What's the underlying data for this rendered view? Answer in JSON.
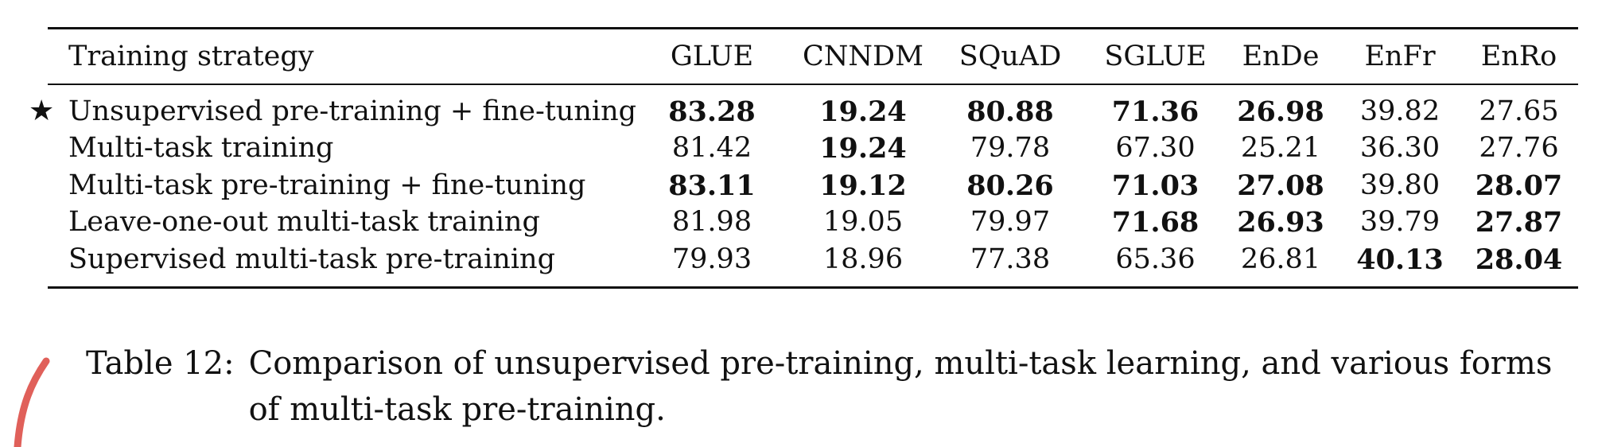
{
  "table": {
    "headers": [
      "Training strategy",
      "GLUE",
      "CNNDM",
      "SQuAD",
      "SGLUE",
      "EnDe",
      "EnFr",
      "EnRo"
    ],
    "rows": [
      {
        "label": "Unsupervised pre-training + fine-tuning",
        "baseline_marker": "★",
        "values": [
          "83.28",
          "19.24",
          "80.88",
          "71.36",
          "26.98",
          "39.82",
          "27.65"
        ],
        "bold": [
          true,
          true,
          true,
          true,
          true,
          false,
          false
        ]
      },
      {
        "label": "Multi-task training",
        "baseline_marker": "",
        "values": [
          "81.42",
          "19.24",
          "79.78",
          "67.30",
          "25.21",
          "36.30",
          "27.76"
        ],
        "bold": [
          false,
          true,
          false,
          false,
          false,
          false,
          false
        ]
      },
      {
        "label": "Multi-task pre-training + fine-tuning",
        "baseline_marker": "",
        "values": [
          "83.11",
          "19.12",
          "80.26",
          "71.03",
          "27.08",
          "39.80",
          "28.07"
        ],
        "bold": [
          true,
          true,
          true,
          true,
          true,
          false,
          true
        ]
      },
      {
        "label": "Leave-one-out multi-task training",
        "baseline_marker": "",
        "values": [
          "81.98",
          "19.05",
          "79.97",
          "71.68",
          "26.93",
          "39.79",
          "27.87"
        ],
        "bold": [
          false,
          false,
          false,
          true,
          true,
          false,
          true
        ]
      },
      {
        "label": "Supervised multi-task pre-training",
        "baseline_marker": "",
        "values": [
          "79.93",
          "18.96",
          "77.38",
          "65.36",
          "26.81",
          "40.13",
          "28.04"
        ],
        "bold": [
          false,
          false,
          false,
          false,
          false,
          true,
          true
        ]
      }
    ]
  },
  "caption": {
    "label": "Table 12:",
    "text": "Comparison of unsupervised pre-training, multi-task learning, and various forms of multi-task pre-training."
  },
  "colors": {
    "text": "#111111",
    "annotation_mark": "#e0605a"
  }
}
